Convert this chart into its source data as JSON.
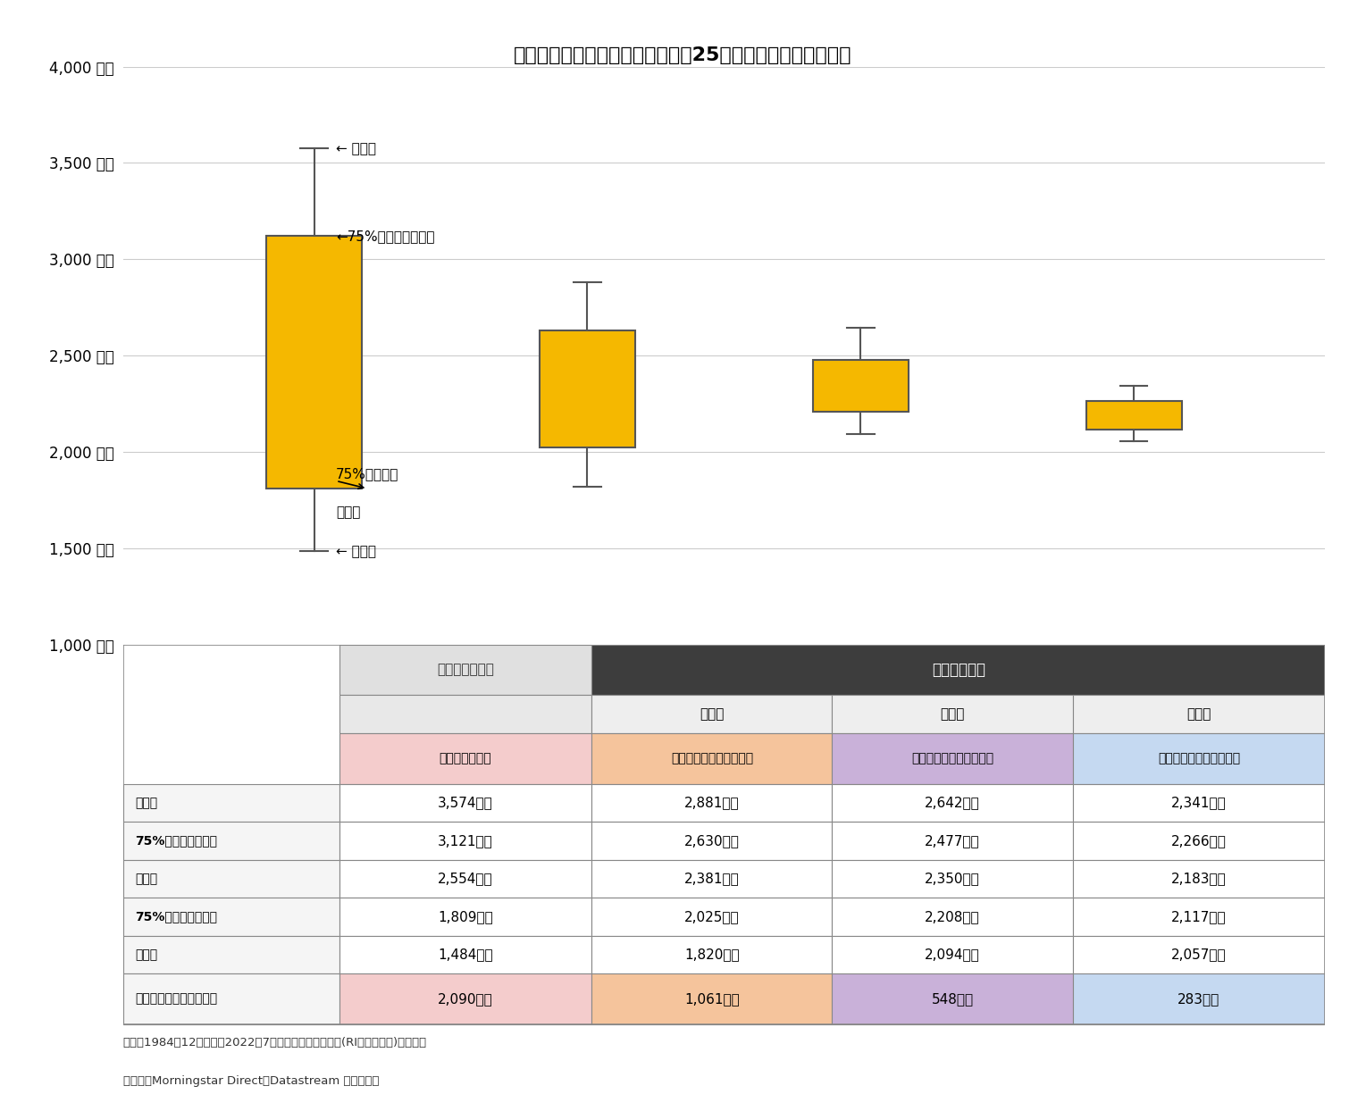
{
  "title": "【図表５】３万円の積立投資での25年後の時価残高の分布図",
  "box_data": [
    {
      "label": "運用継続をする",
      "x": 1,
      "max": 3574,
      "q75": 3121,
      "min": 1484,
      "q25": 1809
    },
    {
      "label": "半分を元本確保型にする",
      "x": 2,
      "max": 2881,
      "q75": 2630,
      "min": 1820,
      "q25": 2025
    },
    {
      "label": "全額をバランス型にする",
      "x": 3,
      "max": 2642,
      "q75": 2477,
      "min": 2094,
      "q25": 2208
    },
    {
      "label": "全額を元本確保型にする",
      "x": 4,
      "max": 2341,
      "q75": 2266,
      "min": 2057,
      "q25": 2117
    }
  ],
  "box_color": "#F5B800",
  "box_edge_color": "#555555",
  "whisker_color": "#555555",
  "ylim": [
    1000,
    4000
  ],
  "yticks": [
    1000,
    1500,
    2000,
    2500,
    3000,
    3500,
    4000
  ],
  "ylabel_suffix": "万円",
  "background_color": "#ffffff",
  "grid_color": "#cccccc",
  "annotation_labels": {
    "max": "← 最大値",
    "q75": "←75%範囲内の最大値",
    "q25_label1": "75%範囲内の",
    "q25_label2": "最小値",
    "min": "← 最小値"
  },
  "table_data": {
    "col_headers_top": [
      "移行しない場合",
      "移行する場合"
    ],
    "col_headers_sub": [
      "",
      "（ａ）",
      "（ｂ）",
      "（ｃ）"
    ],
    "col_headers_detail": [
      "運用継続をする",
      "半分を元本確保型にする",
      "全額をバランス型にする",
      "全額を元本確保型にする"
    ],
    "row_labels": [
      "最大値",
      "75%範囲内の最大値",
      "平均値",
      "75%範囲内の最小値",
      "最小値"
    ],
    "row_labels_bold": [
      true,
      false,
      false,
      false,
      false
    ],
    "data": [
      [
        "3,574万円",
        "2,881万円",
        "2,642万円",
        "2,341万円"
      ],
      [
        "3,121万円",
        "2,630万円",
        "2,477万円",
        "2,266万円"
      ],
      [
        "2,554万円",
        "2,381万円",
        "2,350万円",
        "2,183万円"
      ],
      [
        "1,809万円",
        "2,025万円",
        "2,208万円",
        "2,117万円"
      ],
      [
        "1,484万円",
        "1,820万円",
        "2,094万円",
        "2,057万円"
      ]
    ],
    "diff_label": "最大値と最小値との差額",
    "diff_data": [
      "2,090万円",
      "1,061万円",
      "548万円",
      "283万円"
    ],
    "col_colors": [
      "#F4CCCC",
      "#F5C49C",
      "#C9B1D9",
      "#C5D9F1"
    ],
    "diff_colors": [
      "#F4CCCC",
      "#F5C49C",
      "#C9B1D9",
      "#C5D9F1"
    ],
    "header_top_color": [
      "#E0E0E0",
      "#404040"
    ],
    "header_top_text_color": [
      "#333333",
      "#ffffff"
    ]
  },
  "footnotes": [
    "（注）1984年12月末から2022年7月末までの月次データ(RI・円ベース)を使用。",
    "（資料）Morningstar Direct、Datastream から作成。"
  ]
}
